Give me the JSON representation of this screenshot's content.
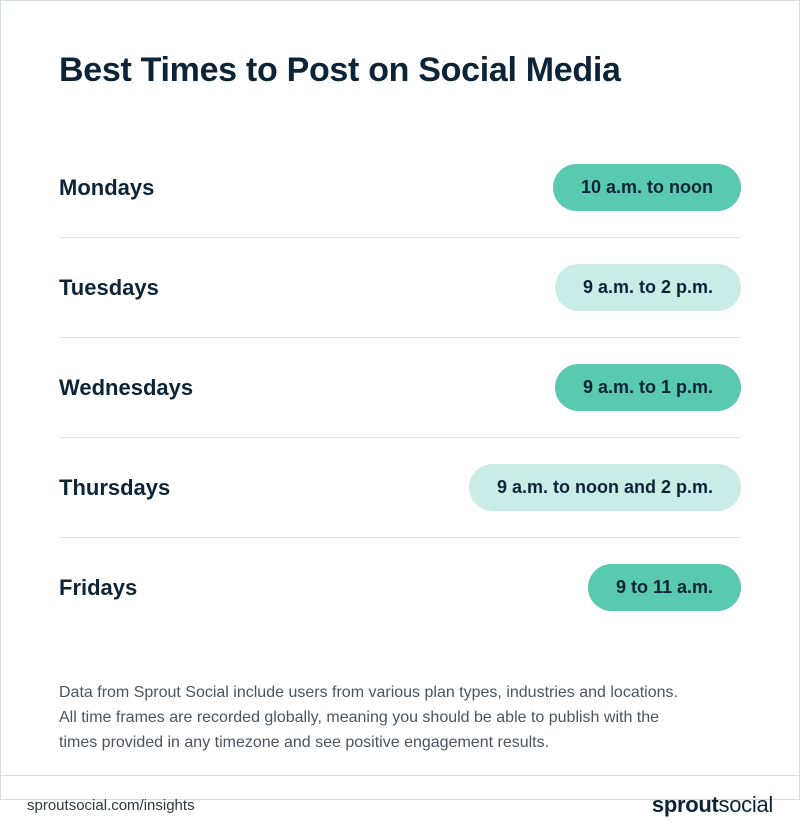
{
  "title": "Best Times to Post on Social Media",
  "title_fontsize": 34,
  "title_color": "#0d2438",
  "background_color": "#ffffff",
  "border_color": "#d6d9dc",
  "divider_color": "#dfe3e6",
  "day_fontsize": 22,
  "day_color": "#0d2438",
  "pill_fontsize": 18,
  "pill_text_color": "#0d2438",
  "pill_radius": 999,
  "pill_colors": {
    "dark": "#59c9b0",
    "light": "#c9ece6"
  },
  "rows": [
    {
      "day": "Mondays",
      "time": "10 a.m. to noon",
      "variant": "dark"
    },
    {
      "day": "Tuesdays",
      "time": "9 a.m. to 2 p.m.",
      "variant": "light"
    },
    {
      "day": "Wednesdays",
      "time": "9 a.m. to 1 p.m.",
      "variant": "dark"
    },
    {
      "day": "Thursdays",
      "time": "9 a.m. to noon and 2 p.m.",
      "variant": "light"
    },
    {
      "day": "Fridays",
      "time": "9 to 11 a.m.",
      "variant": "dark"
    }
  ],
  "disclaimer": "Data from Sprout Social include users from various plan types, industries and locations. All time frames are recorded globally, meaning you should be able to publish with the times provided in any timezone and see positive engagement results.",
  "disclaimer_fontsize": 16,
  "disclaimer_color": "#4a5560",
  "footer": {
    "url": "sproutsocial.com/insights",
    "logo_bold": "sprout",
    "logo_light": "social"
  }
}
